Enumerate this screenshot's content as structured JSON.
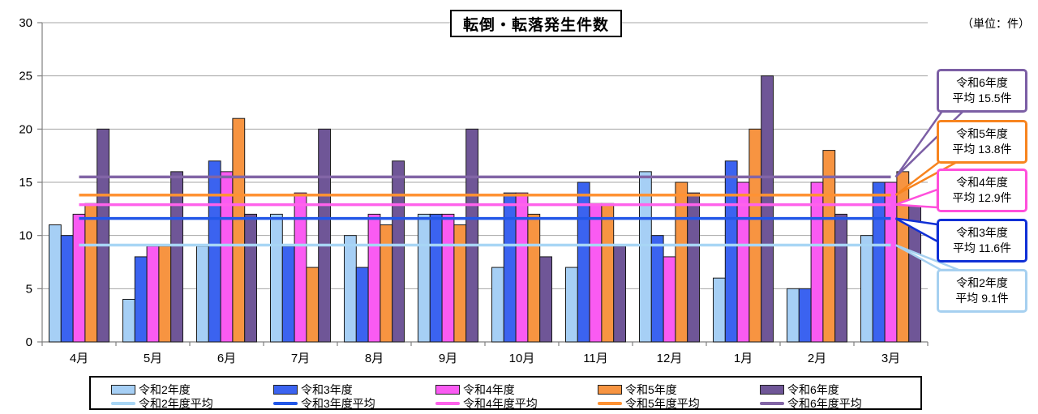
{
  "title": "転倒・転落発生件数",
  "unit_label": "（単位：件）",
  "chart_data": {
    "type": "bar",
    "categories": [
      "4月",
      "5月",
      "6月",
      "7月",
      "8月",
      "9月",
      "10月",
      "11月",
      "12月",
      "1月",
      "2月",
      "3月"
    ],
    "series": [
      {
        "name": "令和2年度",
        "color": "#A6CFF5",
        "values": [
          11,
          4,
          9,
          12,
          10,
          12,
          7,
          7,
          16,
          6,
          5,
          10
        ]
      },
      {
        "name": "令和3年度",
        "color": "#3B63F0",
        "values": [
          10,
          8,
          17,
          9,
          7,
          12,
          14,
          15,
          10,
          17,
          5,
          15
        ]
      },
      {
        "name": "令和4年度",
        "color": "#FA5BF2",
        "values": [
          12,
          9,
          16,
          14,
          12,
          12,
          14,
          13,
          8,
          15,
          15,
          15
        ]
      },
      {
        "name": "令和5年度",
        "color": "#F79441",
        "values": [
          13,
          9,
          21,
          7,
          11,
          11,
          12,
          13,
          15,
          20,
          18,
          16
        ]
      },
      {
        "name": "令和6年度",
        "color": "#6F5697",
        "values": [
          20,
          16,
          12,
          20,
          17,
          20,
          8,
          9,
          14,
          25,
          12,
          13
        ]
      }
    ],
    "averages": [
      {
        "name": "令和2年度平均",
        "color": "#A8D6F5",
        "value": 9.1
      },
      {
        "name": "令和3年度平均",
        "color": "#2257E8",
        "value": 11.6
      },
      {
        "name": "令和4年度平均",
        "color": "#FF62EB",
        "value": 12.9
      },
      {
        "name": "令和5年度平均",
        "color": "#FF9233",
        "value": 13.8
      },
      {
        "name": "令和6年度平均",
        "color": "#8265A6",
        "value": 15.5
      }
    ],
    "ylim": [
      0,
      30
    ],
    "yticks": [
      0,
      5,
      10,
      15,
      20,
      25,
      30
    ],
    "grid": true,
    "legend_position": "bottom"
  },
  "callouts": [
    {
      "line1": "令和6年度",
      "line2": "平均 15.5件",
      "color": "#7C5FA5",
      "value": 15.5
    },
    {
      "line1": "令和5年度",
      "line2": "平均 13.8件",
      "color": "#F7841F",
      "value": 13.8
    },
    {
      "line1": "令和4年度",
      "line2": "平均 12.9件",
      "color": "#FF4FDB",
      "value": 12.9
    },
    {
      "line1": "令和3年度",
      "line2": "平均 11.6件",
      "color": "#1030D6",
      "value": 11.6
    },
    {
      "line1": "令和2年度",
      "line2": "平均 9.1件",
      "color": "#A6D0F0",
      "value": 9.1
    }
  ]
}
